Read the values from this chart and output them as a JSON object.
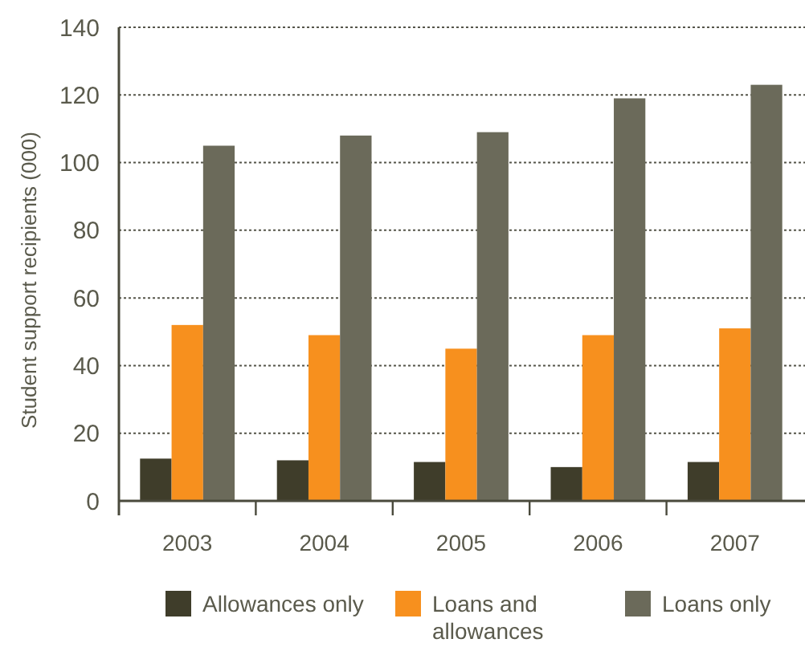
{
  "chart_data": {
    "type": "bar",
    "ylabel": "Student support recipients (000)",
    "categories": [
      "2003",
      "2004",
      "2005",
      "2006",
      "2007"
    ],
    "series": [
      {
        "name": "Allowances only",
        "color": "#3f3d2a",
        "values": [
          12.5,
          12,
          11.5,
          10,
          11.5
        ]
      },
      {
        "name": "Loans and allowances",
        "color": "#f7901e",
        "values": [
          52,
          49,
          45,
          49,
          51
        ]
      },
      {
        "name": "Loans only",
        "color": "#6b6a5a",
        "values": [
          105,
          108,
          109,
          119,
          123
        ]
      }
    ],
    "ylim": [
      0,
      140
    ],
    "yticks": [
      0,
      20,
      40,
      60,
      80,
      100,
      120,
      140
    ],
    "grid": "y",
    "legend": "bottom"
  }
}
